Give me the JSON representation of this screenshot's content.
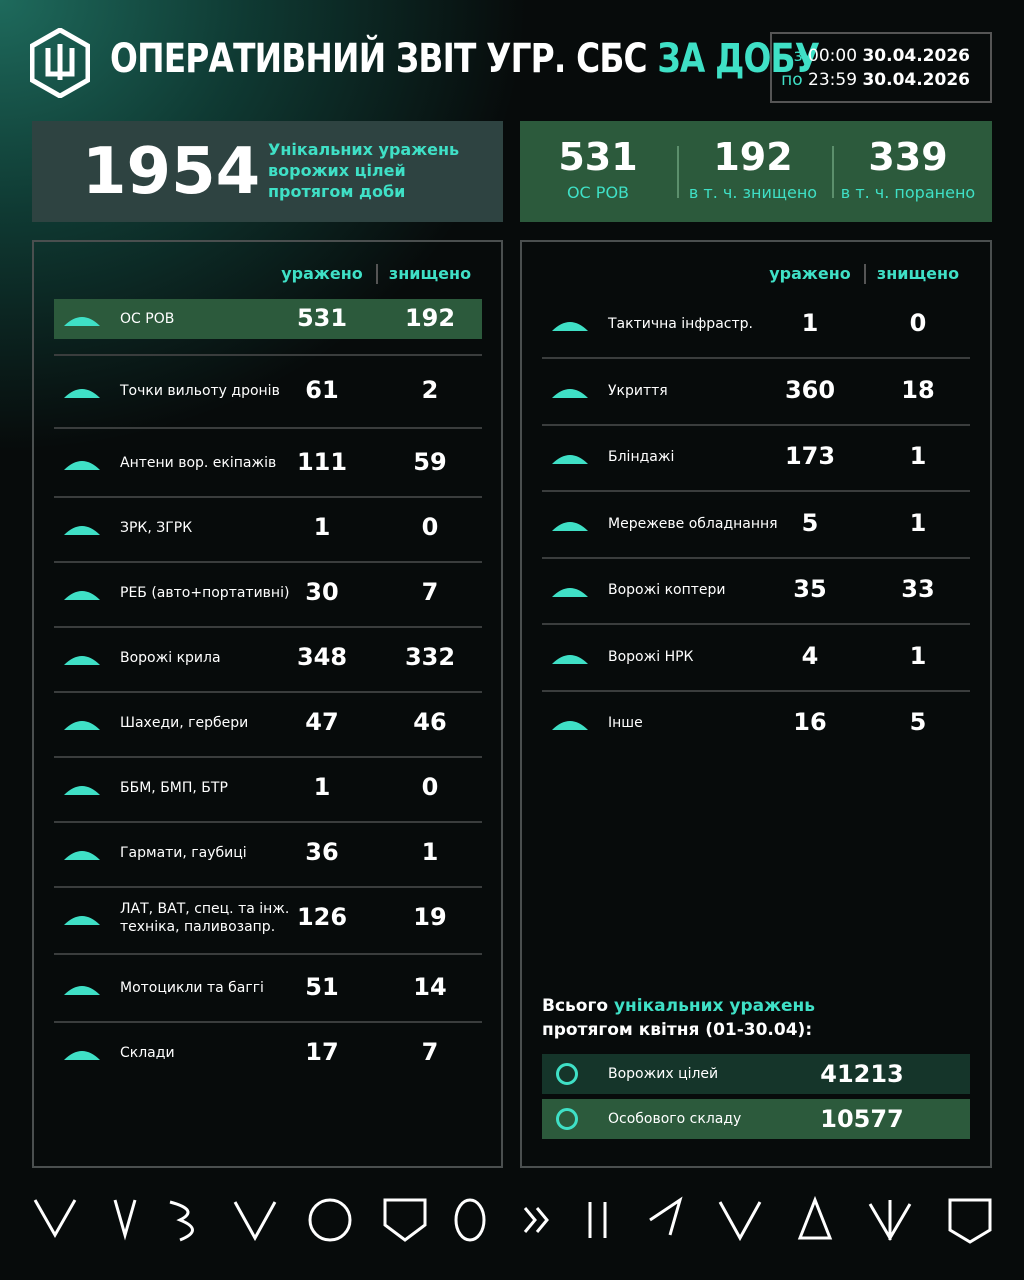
{
  "header": {
    "title": "ОПЕРАТИВНИЙ ЗВІТ УГР. СБС",
    "title_highlight": "ЗА ДОБУ",
    "period": {
      "from_word": "з",
      "from_time": "00:00",
      "from_date": "30.04.2026",
      "to_word": "по",
      "to_time": "23:59",
      "to_date": "30.04.2026"
    }
  },
  "summary": {
    "total": 1954,
    "total_caption": "Унікальних уражень ворожих цілей протягом доби",
    "stats": [
      {
        "value": 531,
        "label": "ОС РОВ"
      },
      {
        "value": 192,
        "label": "в т. ч. знищено"
      },
      {
        "value": 339,
        "label": "в т. ч. поранено"
      }
    ]
  },
  "left_table": {
    "columns": [
      "уражено",
      "знищено"
    ],
    "rows": [
      [
        "ОС РОВ",
        531,
        192
      ],
      [
        "Точки вильоту дронів",
        61,
        2
      ],
      [
        "Антени вор. екіпажів",
        111,
        59
      ],
      [
        "ЗРК, ЗГРК",
        1,
        0
      ],
      [
        "РЕБ (авто+портативні)",
        30,
        7
      ],
      [
        "Ворожі крила",
        348,
        332
      ],
      [
        "Шахеди, гербери",
        47,
        46
      ],
      [
        "ББМ, БМП, БТР",
        1,
        0
      ],
      [
        "Гармати, гаубиці",
        36,
        1
      ],
      [
        "ЛАТ, ВАТ, спец. та інж. техніка, паливозапр.",
        126,
        19
      ],
      [
        "Мотоцикли та баггі",
        51,
        14
      ],
      [
        "Склади",
        17,
        7
      ]
    ]
  },
  "right_table": {
    "columns": [
      "уражено",
      "знищено"
    ],
    "rows": [
      [
        "Тактична інфрастр.",
        1,
        0
      ],
      [
        "Укриття",
        360,
        18
      ],
      [
        "Бліндажі",
        173,
        1
      ],
      [
        "Мережеве обладнання",
        5,
        1
      ],
      [
        "Ворожі коптери",
        35,
        33
      ],
      [
        "Ворожі НРК",
        4,
        1
      ],
      [
        "Інше",
        16,
        5
      ]
    ]
  },
  "totals": {
    "title_start": "Всього",
    "title_highlight": "унікальних уражень",
    "title_end": "протягом квітня (01-30.04):",
    "rows": [
      [
        "Ворожих цілей",
        41213
      ],
      [
        "Особового складу",
        10577
      ]
    ]
  }
}
